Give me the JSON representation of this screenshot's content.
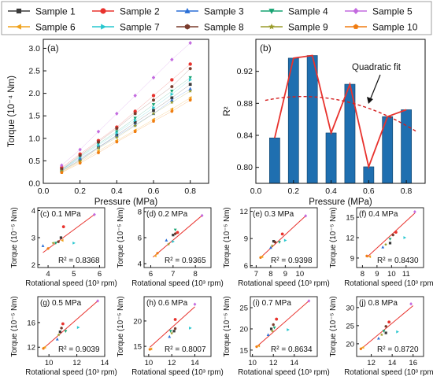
{
  "legend": {
    "items": [
      {
        "label": "Sample 1",
        "color": "#3a3a3a",
        "marker": "square"
      },
      {
        "label": "Sample 2",
        "color": "#e8322d",
        "marker": "circle"
      },
      {
        "label": "Sample 3",
        "color": "#2a6fd6",
        "marker": "triangle-up"
      },
      {
        "label": "Sample 4",
        "color": "#17a372",
        "marker": "triangle-down"
      },
      {
        "label": "Sample 5",
        "color": "#c36adf",
        "marker": "diamond"
      },
      {
        "label": "Sample 6",
        "color": "#f0a21c",
        "marker": "triangle-left"
      },
      {
        "label": "Sample 7",
        "color": "#27c7cf",
        "marker": "triangle-right"
      },
      {
        "label": "Sample 8",
        "color": "#7a3b2c",
        "marker": "hexagon"
      },
      {
        "label": "Sample 9",
        "color": "#9a9c2a",
        "marker": "star"
      },
      {
        "label": "Sample 10",
        "color": "#f07c10",
        "marker": "pentagon"
      }
    ]
  },
  "chart_data": [
    {
      "panel": "(a)",
      "type": "scatter",
      "xlabel": "Pressure (MPa)",
      "ylabel": "Torque (10⁻⁴ Nm)",
      "xlim": [
        0.0,
        0.9
      ],
      "ylim": [
        0.0,
        3.2
      ],
      "xticks": [
        "0.0",
        "0.2",
        "0.4",
        "0.6",
        "0.8"
      ],
      "yticks": [
        "0.0",
        "0.5",
        "1.0",
        "1.5",
        "2.0",
        "2.5",
        "3.0"
      ],
      "x": [
        0.1,
        0.2,
        0.3,
        0.4,
        0.5,
        0.6,
        0.7,
        0.8
      ],
      "series": [
        {
          "name": "Sample 1",
          "values": [
            0.28,
            0.52,
            0.8,
            1.07,
            1.35,
            1.62,
            1.9,
            2.2
          ]
        },
        {
          "name": "Sample 2",
          "values": [
            0.35,
            0.65,
            0.95,
            1.25,
            1.6,
            1.95,
            2.3,
            2.65
          ]
        },
        {
          "name": "Sample 3",
          "values": [
            0.3,
            0.55,
            0.8,
            1.05,
            1.3,
            1.55,
            1.85,
            2.1
          ]
        },
        {
          "name": "Sample 4",
          "values": [
            0.3,
            0.6,
            0.88,
            1.15,
            1.45,
            1.75,
            2.05,
            2.35
          ]
        },
        {
          "name": "Sample 5",
          "values": [
            0.4,
            0.75,
            1.15,
            1.55,
            1.95,
            2.35,
            2.75,
            3.12
          ]
        },
        {
          "name": "Sample 6",
          "values": [
            0.25,
            0.48,
            0.72,
            0.95,
            1.18,
            1.42,
            1.65,
            1.9
          ]
        },
        {
          "name": "Sample 7",
          "values": [
            0.3,
            0.58,
            0.85,
            1.12,
            1.4,
            1.68,
            1.98,
            2.3
          ]
        },
        {
          "name": "Sample 8",
          "values": [
            0.32,
            0.62,
            0.92,
            1.22,
            1.55,
            1.85,
            2.15,
            2.55
          ]
        },
        {
          "name": "Sample 9",
          "values": [
            0.27,
            0.5,
            0.78,
            1.02,
            1.28,
            1.55,
            1.8,
            2.05
          ]
        },
        {
          "name": "Sample 10",
          "values": [
            0.24,
            0.45,
            0.68,
            0.92,
            1.15,
            1.38,
            1.6,
            1.85
          ]
        }
      ]
    },
    {
      "panel": "(b)",
      "type": "bar",
      "xlabel": "Pressure (MPa)",
      "ylabel": "R²",
      "xlim": [
        0.0,
        0.9
      ],
      "ylim": [
        0.78,
        0.96
      ],
      "xticks": [
        "0.0",
        "0.2",
        "0.4",
        "0.6",
        "0.8"
      ],
      "yticks": [
        "0.80",
        "0.84",
        "0.88",
        "0.92"
      ],
      "categories": [
        0.1,
        0.2,
        0.3,
        0.4,
        0.5,
        0.6,
        0.7,
        0.8
      ],
      "values": [
        0.8368,
        0.9365,
        0.9398,
        0.843,
        0.9039,
        0.8007,
        0.8634,
        0.872
      ],
      "bar_color": "#1f6fb0",
      "line_color": "#e8322d",
      "fit": {
        "label": "Quadratic fit",
        "a": -0.12,
        "b": 0.06,
        "c": 0.881
      }
    }
  ],
  "small_panels": [
    {
      "id": "(c)",
      "pressure": "0.1 MPa",
      "r2": "R² = 0.8368",
      "xlim": [
        3.6,
        6.2
      ],
      "ylim": [
        1.9,
        4.1
      ],
      "xticks": [
        4,
        5,
        6
      ],
      "yticks": [
        2,
        3,
        4
      ],
      "points": [
        [
          4.5,
          3.0
        ],
        [
          4.6,
          3.4
        ],
        [
          3.8,
          2.7
        ],
        [
          4.3,
          2.8
        ],
        [
          5.8,
          3.85
        ],
        [
          4.55,
          2.9
        ],
        [
          5.0,
          2.8
        ],
        [
          4.4,
          2.85
        ],
        [
          4.2,
          2.8
        ],
        [
          4.0,
          2.6
        ]
      ],
      "fit": [
        [
          3.8,
          2.45
        ],
        [
          5.8,
          3.85
        ]
      ]
    },
    {
      "id": "(d)",
      "pressure": "0.2 MPa",
      "r2": "R² = 0.9365",
      "xlim": [
        5.7,
        8.7
      ],
      "ylim": [
        3.7,
        8.3
      ],
      "xticks": [
        6,
        7,
        8
      ],
      "yticks": [
        4,
        6,
        8
      ],
      "points": [
        [
          7.0,
          6.2
        ],
        [
          7.2,
          6.4
        ],
        [
          6.7,
          5.8
        ],
        [
          7.1,
          6.6
        ],
        [
          8.3,
          7.7
        ],
        [
          6.2,
          4.6
        ],
        [
          7.0,
          5.7
        ],
        [
          7.1,
          6.3
        ],
        [
          6.8,
          5.5
        ],
        [
          6.3,
          4.8
        ]
      ],
      "fit": [
        [
          6.1,
          4.5
        ],
        [
          8.3,
          7.7
        ]
      ]
    },
    {
      "id": "(e)",
      "pressure": "0.3 MPa",
      "r2": "R² = 0.9398",
      "xlim": [
        6.6,
        11.2
      ],
      "ylim": [
        5.8,
        12.4
      ],
      "xticks": [
        7,
        8,
        9,
        10
      ],
      "yticks": [
        6,
        9,
        12
      ],
      "points": [
        [
          8.2,
          8.7
        ],
        [
          8.8,
          9.5
        ],
        [
          8.0,
          8.0
        ],
        [
          8.6,
          8.6
        ],
        [
          10.4,
          11.5
        ],
        [
          7.4,
          7.0
        ],
        [
          9.0,
          8.8
        ],
        [
          8.3,
          8.6
        ],
        [
          8.1,
          8.2
        ],
        [
          7.3,
          6.9
        ]
      ],
      "fit": [
        [
          7.3,
          6.9
        ],
        [
          10.4,
          11.5
        ]
      ]
    },
    {
      "id": "(f)",
      "pressure": "0.4 MPa",
      "r2": "R² = 0.8430",
      "xlim": [
        7.6,
        12.2
      ],
      "ylim": [
        7.6,
        16.4
      ],
      "xticks": [
        8,
        9,
        10,
        11
      ],
      "yticks": [
        9,
        12,
        15
      ],
      "points": [
        [
          9.9,
          11.2
        ],
        [
          10.3,
          12.8
        ],
        [
          9.4,
          10.6
        ],
        [
          9.9,
          11.8
        ],
        [
          11.6,
          15.8
        ],
        [
          8.5,
          9.2
        ],
        [
          10.9,
          12.0
        ],
        [
          10.1,
          12.4
        ],
        [
          9.6,
          11.0
        ],
        [
          8.3,
          9.3
        ]
      ],
      "fit": [
        [
          8.3,
          9.1
        ],
        [
          11.6,
          15.6
        ]
      ]
    },
    {
      "id": "(g)",
      "pressure": "0.5 MPa",
      "r2": "R² = 0.9039",
      "xlim": [
        9.2,
        14.0
      ],
      "ylim": [
        10.5,
        20.2
      ],
      "xticks": [
        10,
        12,
        14
      ],
      "yticks": [
        12,
        16
      ],
      "points": [
        [
          10.8,
          14.5
        ],
        [
          11.0,
          15.8
        ],
        [
          10.6,
          13.3
        ],
        [
          11.2,
          14.6
        ],
        [
          13.5,
          19.5
        ],
        [
          9.7,
          12.0
        ],
        [
          12.1,
          15.2
        ],
        [
          10.9,
          15.1
        ],
        [
          10.7,
          14.0
        ],
        [
          9.6,
          11.8
        ]
      ],
      "fit": [
        [
          9.6,
          11.8
        ],
        [
          13.5,
          19.5
        ]
      ]
    },
    {
      "id": "(h)",
      "pressure": "0.6 MPa",
      "r2": "R² = 0.8007",
      "xlim": [
        9.6,
        15.4
      ],
      "ylim": [
        13.0,
        24.8
      ],
      "xticks": [
        10,
        12,
        14
      ],
      "yticks": [
        15,
        20
      ],
      "points": [
        [
          12.2,
          18.0
        ],
        [
          12.3,
          20.3
        ],
        [
          11.8,
          16.9
        ],
        [
          11.9,
          18.0
        ],
        [
          14.0,
          23.3
        ],
        [
          10.2,
          14.5
        ],
        [
          13.6,
          18.6
        ],
        [
          12.3,
          18.5
        ],
        [
          12.0,
          17.6
        ],
        [
          10.1,
          14.4
        ]
      ],
      "fit": [
        [
          10.1,
          14.8
        ],
        [
          14.0,
          22.8
        ]
      ]
    },
    {
      "id": "(i)",
      "pressure": "0.7 MPa",
      "r2": "R² = 0.8634",
      "xlim": [
        9.8,
        16.2
      ],
      "ylim": [
        13.5,
        27.6
      ],
      "xticks": [
        10,
        12,
        14
      ],
      "yticks": [
        15,
        20,
        25
      ],
      "points": [
        [
          11.8,
          20.0
        ],
        [
          12.3,
          22.3
        ],
        [
          11.5,
          18.6
        ],
        [
          12.1,
          20.3
        ],
        [
          15.4,
          26.6
        ],
        [
          10.6,
          16.0
        ],
        [
          13.4,
          19.8
        ],
        [
          12.0,
          21.0
        ],
        [
          11.9,
          19.5
        ],
        [
          10.4,
          15.8
        ]
      ],
      "fit": [
        [
          10.4,
          15.8
        ],
        [
          15.4,
          26.6
        ]
      ]
    },
    {
      "id": "(j)",
      "pressure": "0.8 MPa",
      "r2": "R² = 0.8720",
      "xlim": [
        10.6,
        17.0
      ],
      "ylim": [
        16.5,
        33.0
      ],
      "xticks": [
        12,
        14,
        16
      ],
      "yticks": [
        20,
        25,
        30
      ],
      "points": [
        [
          13.4,
          23.0
        ],
        [
          13.7,
          26.0
        ],
        [
          12.7,
          21.5
        ],
        [
          13.2,
          23.5
        ],
        [
          15.8,
          31.0
        ],
        [
          11.2,
          19.0
        ],
        [
          14.5,
          23.3
        ],
        [
          13.4,
          24.8
        ],
        [
          13.0,
          22.5
        ],
        [
          11.0,
          18.6
        ]
      ],
      "fit": [
        [
          11.0,
          18.5
        ],
        [
          16.0,
          30.5
        ]
      ]
    }
  ],
  "small_labels": {
    "xlabel": "Rotational speed (10³ rpm)",
    "ylabel": "Torque (10⁻⁵ Nm)"
  }
}
